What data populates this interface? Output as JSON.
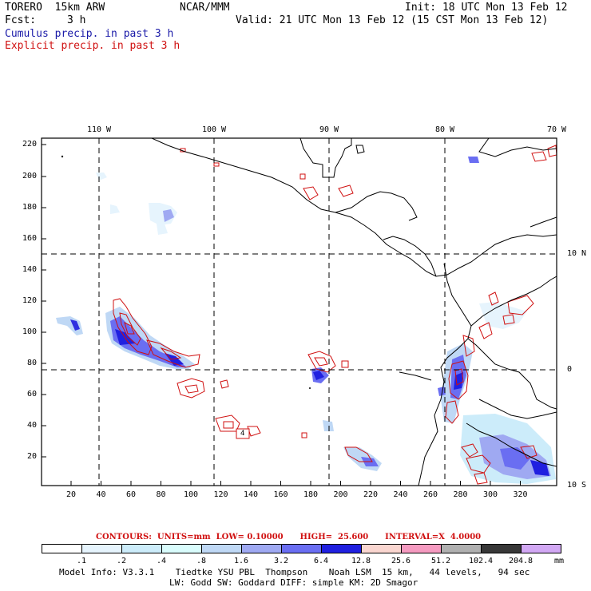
{
  "header": {
    "model": "TORERO  15km ARW",
    "org": "NCAR/MMM",
    "init": "Init: 18 UTC Mon 13 Feb 12",
    "fcst_label": "Fcst:",
    "fcst_value": "3 h",
    "valid": "Valid: 21 UTC Mon 13 Feb 12 (15 CST Mon 13 Feb 12)",
    "line_cumulus": "Cumulus precip. in past 3 h",
    "line_explicit": "Explicit precip. in past 3 h"
  },
  "map": {
    "top_lon_labels": [
      "110 W",
      "100 W",
      "90 W",
      "80 W",
      "70 W"
    ],
    "right_lat_labels": [
      "10 N",
      "0",
      "10 S"
    ],
    "y_ticks": [
      "220",
      "200",
      "180",
      "160",
      "140",
      "120",
      "100",
      "80",
      "60",
      "40",
      "20"
    ],
    "x_ticks": [
      "20",
      "40",
      "60",
      "80",
      "100",
      "120",
      "140",
      "160",
      "180",
      "200",
      "220",
      "240",
      "260",
      "280",
      "300",
      "320"
    ],
    "marker_label": "4"
  },
  "contours_info": {
    "text": "CONTOURS:  UNITS=mm  LOW= 0.10000      HIGH=  25.600      INTERVAL=X  4.0000"
  },
  "colorbar": {
    "colors": [
      "#ffffff",
      "#e6f4fd",
      "#ccecfa",
      "#d9fcfc",
      "#bfd8f5",
      "#9fa9f2",
      "#6a6ef2",
      "#2020e0",
      "#fad6d0",
      "#f59ac0",
      "#b0b0b0",
      "#383838",
      "#d2a8f4"
    ],
    "labels": [
      ".1",
      ".2",
      ".4",
      ".8",
      "1.6",
      "3.2",
      "6.4",
      "12.8",
      "25.6",
      "51.2",
      "102.4",
      "204.8"
    ],
    "units": "mm"
  },
  "footer": {
    "line1": "Model Info: V3.3.1    Tiedtke YSU PBL  Thompson    Noah LSM  15 km,   44 levels,   94 sec",
    "line2": "LW: Godd SW: Goddard DIFF: simple KM: 2D Smagor"
  }
}
